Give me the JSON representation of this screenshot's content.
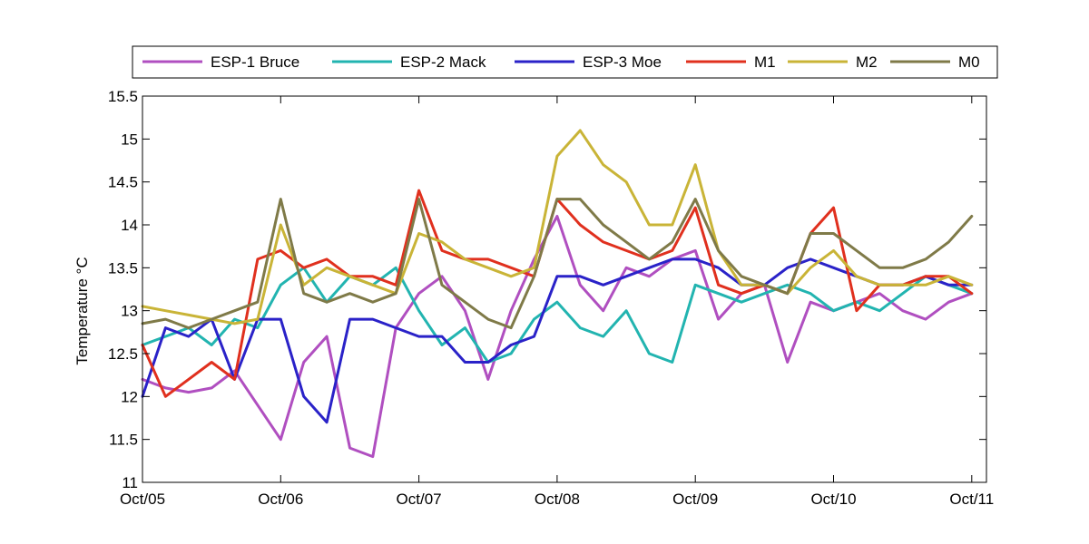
{
  "chart_data": {
    "type": "line",
    "title": "",
    "xlabel": "",
    "ylabel": "Temperature °C",
    "xlim": [
      "2012-10-05",
      "2012-10-11 00:12"
    ],
    "ylim": [
      11,
      15.5
    ],
    "x_ticks": [
      "Oct/05",
      "Oct/06",
      "Oct/07",
      "Oct/08",
      "Oct/09",
      "Oct/10",
      "Oct/11"
    ],
    "y_ticks": [
      "11",
      "11.5",
      "12",
      "12.5",
      "13",
      "13.5",
      "14",
      "14.5",
      "15",
      "15.5"
    ],
    "grid": false,
    "legend_position": "top",
    "series": [
      {
        "name": "ESP-1 Bruce",
        "color": "#b04fc0",
        "x": [
          "Oct/05 00:00",
          "Oct/05 04:00",
          "Oct/05 08:00",
          "Oct/05 12:00",
          "Oct/05 16:00",
          "Oct/05 20:00",
          "Oct/06 00:00",
          "Oct/06 04:00",
          "Oct/06 08:00",
          "Oct/06 12:00",
          "Oct/06 16:00",
          "Oct/06 20:00",
          "Oct/07 00:00",
          "Oct/07 04:00",
          "Oct/07 08:00",
          "Oct/07 12:00",
          "Oct/07 16:00",
          "Oct/07 20:00",
          "Oct/08 00:00",
          "Oct/08 04:00",
          "Oct/08 08:00",
          "Oct/08 12:00",
          "Oct/08 16:00",
          "Oct/08 20:00",
          "Oct/09 00:00",
          "Oct/09 04:00",
          "Oct/09 08:00",
          "Oct/09 12:00",
          "Oct/09 16:00",
          "Oct/09 20:00",
          "Oct/10 00:00",
          "Oct/10 04:00",
          "Oct/10 08:00",
          "Oct/10 12:00",
          "Oct/10 16:00",
          "Oct/10 20:00",
          "Oct/11 00:00"
        ],
        "y": [
          12.2,
          12.1,
          12.05,
          12.1,
          12.3,
          11.9,
          11.5,
          12.4,
          12.7,
          11.4,
          11.3,
          12.8,
          13.2,
          13.4,
          13.0,
          12.2,
          13.0,
          13.6,
          14.1,
          13.3,
          13.0,
          13.5,
          13.4,
          13.6,
          13.7,
          12.9,
          13.2,
          13.3,
          12.4,
          13.1,
          13.0,
          13.1,
          13.2,
          13.0,
          12.9,
          13.1,
          13.2
        ]
      },
      {
        "name": "ESP-2 Mack",
        "color": "#22b4b0",
        "x": [
          "Oct/05 00:00",
          "Oct/05 04:00",
          "Oct/05 08:00",
          "Oct/05 12:00",
          "Oct/05 16:00",
          "Oct/05 20:00",
          "Oct/06 00:00",
          "Oct/06 04:00",
          "Oct/06 08:00",
          "Oct/06 12:00",
          "Oct/06 16:00",
          "Oct/06 20:00",
          "Oct/07 00:00",
          "Oct/07 04:00",
          "Oct/07 08:00",
          "Oct/07 12:00",
          "Oct/07 16:00",
          "Oct/07 20:00",
          "Oct/08 00:00",
          "Oct/08 04:00",
          "Oct/08 08:00",
          "Oct/08 12:00",
          "Oct/08 16:00",
          "Oct/08 20:00",
          "Oct/09 00:00",
          "Oct/09 04:00",
          "Oct/09 08:00",
          "Oct/09 12:00",
          "Oct/09 16:00",
          "Oct/09 20:00",
          "Oct/10 00:00",
          "Oct/10 04:00",
          "Oct/10 08:00",
          "Oct/10 12:00",
          "Oct/10 16:00",
          "Oct/10 20:00",
          "Oct/11 00:00"
        ],
        "y": [
          12.6,
          12.7,
          12.8,
          12.6,
          12.9,
          12.8,
          13.3,
          13.5,
          13.1,
          13.4,
          13.3,
          13.5,
          13.0,
          12.6,
          12.8,
          12.4,
          12.5,
          12.9,
          13.1,
          12.8,
          12.7,
          13.0,
          12.5,
          12.4,
          13.3,
          13.2,
          13.1,
          13.2,
          13.3,
          13.2,
          13.0,
          13.1,
          13.0,
          13.2,
          13.4,
          13.3,
          13.2
        ]
      },
      {
        "name": "ESP-3 Moe",
        "color": "#2a22c8",
        "x": [
          "Oct/05 00:00",
          "Oct/05 04:00",
          "Oct/05 08:00",
          "Oct/05 12:00",
          "Oct/05 16:00",
          "Oct/05 20:00",
          "Oct/06 00:00",
          "Oct/06 04:00",
          "Oct/06 08:00",
          "Oct/06 12:00",
          "Oct/06 16:00",
          "Oct/06 20:00",
          "Oct/07 00:00",
          "Oct/07 04:00",
          "Oct/07 08:00",
          "Oct/07 12:00",
          "Oct/07 16:00",
          "Oct/07 20:00",
          "Oct/08 00:00",
          "Oct/08 04:00",
          "Oct/08 08:00",
          "Oct/08 12:00",
          "Oct/08 16:00",
          "Oct/08 20:00",
          "Oct/09 00:00",
          "Oct/09 04:00",
          "Oct/09 08:00",
          "Oct/09 12:00",
          "Oct/09 16:00",
          "Oct/09 20:00",
          "Oct/10 00:00",
          "Oct/10 04:00",
          "Oct/10 08:00",
          "Oct/10 12:00",
          "Oct/10 16:00",
          "Oct/10 20:00",
          "Oct/11 00:00"
        ],
        "y": [
          12.0,
          12.8,
          12.7,
          12.9,
          12.2,
          12.9,
          12.9,
          12.0,
          11.7,
          12.9,
          12.9,
          12.8,
          12.7,
          12.7,
          12.4,
          12.4,
          12.6,
          12.7,
          13.4,
          13.4,
          13.3,
          13.4,
          13.5,
          13.6,
          13.6,
          13.5,
          13.3,
          13.3,
          13.5,
          13.6,
          13.5,
          13.4,
          13.3,
          13.3,
          13.4,
          13.3,
          13.3
        ]
      },
      {
        "name": "M1",
        "color": "#e0301e",
        "x": [
          "Oct/05 00:00",
          "Oct/05 04:00",
          "Oct/05 08:00",
          "Oct/05 12:00",
          "Oct/05 16:00",
          "Oct/05 20:00",
          "Oct/06 00:00",
          "Oct/06 04:00",
          "Oct/06 08:00",
          "Oct/06 12:00",
          "Oct/06 16:00",
          "Oct/06 20:00",
          "Oct/07 00:00",
          "Oct/07 04:00",
          "Oct/07 08:00",
          "Oct/07 12:00",
          "Oct/07 16:00",
          "Oct/07 20:00",
          "Oct/08 00:00",
          "Oct/08 04:00",
          "Oct/08 08:00",
          "Oct/08 12:00",
          "Oct/08 16:00",
          "Oct/08 20:00",
          "Oct/09 00:00",
          "Oct/09 04:00",
          "Oct/09 08:00",
          "Oct/09 12:00",
          "Oct/09 16:00",
          "Oct/09 20:00",
          "Oct/10 00:00",
          "Oct/10 04:00",
          "Oct/10 08:00",
          "Oct/10 12:00",
          "Oct/10 16:00",
          "Oct/10 20:00",
          "Oct/11 00:00"
        ],
        "y": [
          12.6,
          12.0,
          12.2,
          12.4,
          12.2,
          13.6,
          13.7,
          13.5,
          13.6,
          13.4,
          13.4,
          13.3,
          14.4,
          13.7,
          13.6,
          13.6,
          13.5,
          13.4,
          14.3,
          14.0,
          13.8,
          13.7,
          13.6,
          13.7,
          14.2,
          13.3,
          13.2,
          13.3,
          13.2,
          13.9,
          14.2,
          13.0,
          13.3,
          13.3,
          13.4,
          13.4,
          13.2
        ]
      },
      {
        "name": "M2",
        "color": "#c9b437",
        "x": [
          "Oct/05 00:00",
          "Oct/05 04:00",
          "Oct/05 08:00",
          "Oct/05 12:00",
          "Oct/05 16:00",
          "Oct/05 20:00",
          "Oct/06 00:00",
          "Oct/06 04:00",
          "Oct/06 08:00",
          "Oct/06 12:00",
          "Oct/06 16:00",
          "Oct/06 20:00",
          "Oct/07 00:00",
          "Oct/07 04:00",
          "Oct/07 08:00",
          "Oct/07 12:00",
          "Oct/07 16:00",
          "Oct/07 20:00",
          "Oct/08 00:00",
          "Oct/08 04:00",
          "Oct/08 08:00",
          "Oct/08 12:00",
          "Oct/08 16:00",
          "Oct/08 20:00",
          "Oct/09 00:00",
          "Oct/09 04:00",
          "Oct/09 08:00",
          "Oct/09 12:00",
          "Oct/09 16:00",
          "Oct/09 20:00",
          "Oct/10 00:00",
          "Oct/10 04:00",
          "Oct/10 08:00",
          "Oct/10 12:00",
          "Oct/10 16:00",
          "Oct/10 20:00",
          "Oct/11 00:00"
        ],
        "y": [
          13.05,
          13.0,
          12.95,
          12.9,
          12.85,
          12.9,
          14.0,
          13.3,
          13.5,
          13.4,
          13.3,
          13.2,
          13.9,
          13.8,
          13.6,
          13.5,
          13.4,
          13.5,
          14.8,
          15.1,
          14.7,
          14.5,
          14.0,
          14.0,
          14.7,
          13.7,
          13.3,
          13.3,
          13.2,
          13.5,
          13.7,
          13.4,
          13.3,
          13.3,
          13.3,
          13.4,
          13.3
        ]
      },
      {
        "name": "M0",
        "color": "#7f7a48",
        "x": [
          "Oct/05 00:00",
          "Oct/05 04:00",
          "Oct/05 08:00",
          "Oct/05 12:00",
          "Oct/05 16:00",
          "Oct/05 20:00",
          "Oct/06 00:00",
          "Oct/06 04:00",
          "Oct/06 08:00",
          "Oct/06 12:00",
          "Oct/06 16:00",
          "Oct/06 20:00",
          "Oct/07 00:00",
          "Oct/07 04:00",
          "Oct/07 08:00",
          "Oct/07 12:00",
          "Oct/07 16:00",
          "Oct/07 20:00",
          "Oct/08 00:00",
          "Oct/08 04:00",
          "Oct/08 08:00",
          "Oct/08 12:00",
          "Oct/08 16:00",
          "Oct/08 20:00",
          "Oct/09 00:00",
          "Oct/09 04:00",
          "Oct/09 08:00",
          "Oct/09 12:00",
          "Oct/09 16:00",
          "Oct/09 20:00",
          "Oct/10 00:00",
          "Oct/10 04:00",
          "Oct/10 08:00",
          "Oct/10 12:00",
          "Oct/10 16:00",
          "Oct/10 20:00",
          "Oct/11 00:00"
        ],
        "y": [
          12.85,
          12.9,
          12.8,
          12.9,
          13.0,
          13.1,
          14.3,
          13.2,
          13.1,
          13.2,
          13.1,
          13.2,
          14.3,
          13.3,
          13.1,
          12.9,
          12.8,
          13.4,
          14.3,
          14.3,
          14.0,
          13.8,
          13.6,
          13.8,
          14.3,
          13.7,
          13.4,
          13.3,
          13.2,
          13.9,
          13.9,
          13.7,
          13.5,
          13.5,
          13.6,
          13.8,
          14.1
        ]
      }
    ]
  }
}
